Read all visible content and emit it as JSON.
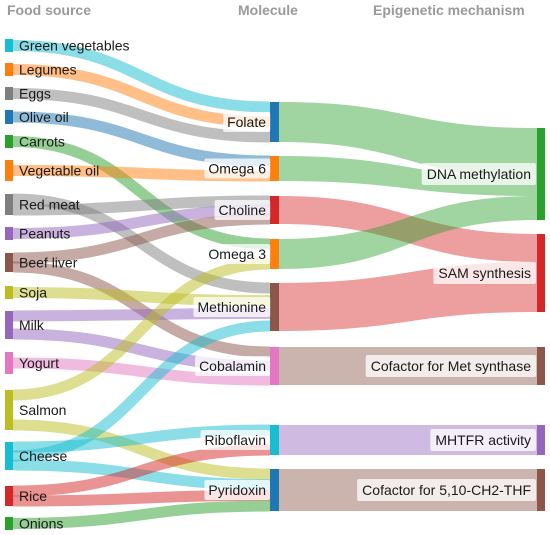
{
  "headers": {
    "food": "Food source",
    "molecule": "Molecule",
    "mechanism": "Epigenetic mechanism"
  },
  "foods": [
    {
      "id": "green_veg",
      "label": "Green vegetables",
      "color": "#17becf"
    },
    {
      "id": "legumes",
      "label": "Legumes",
      "color": "#ff7f0e"
    },
    {
      "id": "eggs",
      "label": "Eggs",
      "color": "#7f7f7f"
    },
    {
      "id": "olive_oil",
      "label": "Olive oil",
      "color": "#1f77b4"
    },
    {
      "id": "carrots",
      "label": "Carrots",
      "color": "#2ca02c"
    },
    {
      "id": "veg_oil",
      "label": "Vegetable oil",
      "color": "#ff7f0e"
    },
    {
      "id": "red_meat",
      "label": "Red meat",
      "color": "#7f7f7f"
    },
    {
      "id": "peanuts",
      "label": "Peanuts",
      "color": "#9467bd"
    },
    {
      "id": "beef_liver",
      "label": "Beef liver",
      "color": "#8c564b"
    },
    {
      "id": "soja",
      "label": "Soja",
      "color": "#bcbd22"
    },
    {
      "id": "milk",
      "label": "Milk",
      "color": "#9467bd"
    },
    {
      "id": "yogurt",
      "label": "Yogurt",
      "color": "#e377c2"
    },
    {
      "id": "salmon",
      "label": "Salmon",
      "color": "#bcbd22"
    },
    {
      "id": "cheese",
      "label": "Cheese",
      "color": "#17becf"
    },
    {
      "id": "rice",
      "label": "Rice",
      "color": "#d62728"
    },
    {
      "id": "onions",
      "label": "Onions",
      "color": "#2ca02c"
    }
  ],
  "molecules": [
    {
      "id": "folate",
      "label": "Folate",
      "color": "#1f77b4"
    },
    {
      "id": "omega6",
      "label": "Omega 6",
      "color": "#ff7f0e"
    },
    {
      "id": "choline",
      "label": "Choline",
      "color": "#d62728"
    },
    {
      "id": "omega3",
      "label": "Omega 3",
      "color": "#ff7f0e"
    },
    {
      "id": "methionine",
      "label": "Methionine",
      "color": "#8c564b"
    },
    {
      "id": "cobalamin",
      "label": "Cobalamin",
      "color": "#e377c2"
    },
    {
      "id": "riboflavin",
      "label": "Riboflavin",
      "color": "#17becf"
    },
    {
      "id": "pyridoxin",
      "label": "Pyridoxin",
      "color": "#1f77b4"
    }
  ],
  "mechanisms": [
    {
      "id": "dna_meth",
      "label": "DNA methylation",
      "color": "#2ca02c"
    },
    {
      "id": "sam_synth",
      "label": "SAM synthesis",
      "color": "#d62728"
    },
    {
      "id": "met_synthase",
      "label": "Cofactor for Met synthase",
      "color": "#8c564b"
    },
    {
      "id": "mhtfr",
      "label": "MHTFR activity",
      "color": "#9467bd"
    },
    {
      "id": "cofactor_thf",
      "label": "Cofactor for 5,10-CH2-THF",
      "color": "#8c564b"
    }
  ],
  "food_links": [
    {
      "from": "green_veg",
      "to": "folate"
    },
    {
      "from": "legumes",
      "to": "folate"
    },
    {
      "from": "eggs",
      "to": "folate"
    },
    {
      "from": "olive_oil",
      "to": "omega6"
    },
    {
      "from": "carrots",
      "to": "omega3"
    },
    {
      "from": "veg_oil",
      "to": "omega6"
    },
    {
      "from": "red_meat",
      "to": "methionine"
    },
    {
      "from": "red_meat",
      "to": "choline"
    },
    {
      "from": "peanuts",
      "to": "choline"
    },
    {
      "from": "beef_liver",
      "to": "choline"
    },
    {
      "from": "beef_liver",
      "to": "cobalamin"
    },
    {
      "from": "soja",
      "to": "methionine"
    },
    {
      "from": "milk",
      "to": "methionine"
    },
    {
      "from": "milk",
      "to": "cobalamin"
    },
    {
      "from": "yogurt",
      "to": "cobalamin"
    },
    {
      "from": "salmon",
      "to": "omega3"
    },
    {
      "from": "salmon",
      "to": "pyridoxin"
    },
    {
      "from": "cheese",
      "to": "riboflavin"
    },
    {
      "from": "cheese",
      "to": "methionine"
    },
    {
      "from": "cheese",
      "to": "pyridoxin"
    },
    {
      "from": "rice",
      "to": "riboflavin"
    },
    {
      "from": "rice",
      "to": "pyridoxin"
    },
    {
      "from": "onions",
      "to": "pyridoxin"
    }
  ],
  "molecule_links": [
    {
      "from": "folate",
      "to": "dna_meth",
      "color": "#2ca02c"
    },
    {
      "from": "omega6",
      "to": "dna_meth",
      "color": "#2ca02c"
    },
    {
      "from": "choline",
      "to": "sam_synth",
      "color": "#d62728"
    },
    {
      "from": "omega3",
      "to": "dna_meth",
      "color": "#2ca02c"
    },
    {
      "from": "methionine",
      "to": "sam_synth",
      "color": "#d62728"
    },
    {
      "from": "cobalamin",
      "to": "met_synthase",
      "color": "#8c564b"
    },
    {
      "from": "riboflavin",
      "to": "mhtfr",
      "color": "#9467bd"
    },
    {
      "from": "pyridoxin",
      "to": "cofactor_thf",
      "color": "#8c564b"
    }
  ]
}
